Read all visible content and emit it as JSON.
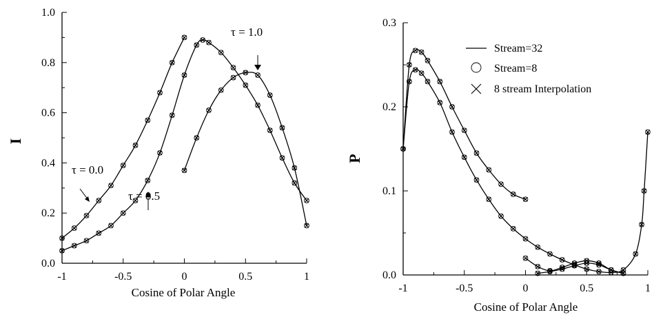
{
  "chart_data": [
    {
      "type": "line",
      "xlabel": "Cosine of Polar Angle",
      "ylabel": "I",
      "xlim": [
        -1,
        1
      ],
      "ylim": [
        0,
        1
      ],
      "xticks": [
        "-1",
        "-0.5",
        "0",
        "0.5",
        "1"
      ],
      "yticks": [
        "0.0",
        "0.2",
        "0.4",
        "0.6",
        "0.8",
        "1.0"
      ],
      "grid": false,
      "series": [
        {
          "name": "τ = 0.0",
          "x": [
            -1,
            -0.9,
            -0.8,
            -0.7,
            -0.6,
            -0.5,
            -0.4,
            -0.3,
            -0.2,
            -0.1,
            0
          ],
          "y": [
            0.1,
            0.14,
            0.19,
            0.25,
            0.31,
            0.39,
            0.47,
            0.57,
            0.68,
            0.8,
            0.9
          ]
        },
        {
          "name": "τ = 0.5",
          "x": [
            -1,
            -0.9,
            -0.8,
            -0.7,
            -0.6,
            -0.5,
            -0.4,
            -0.3,
            -0.2,
            -0.1,
            0,
            0.1,
            0.15,
            0.2,
            0.3,
            0.4,
            0.5,
            0.6,
            0.7,
            0.8,
            0.9,
            1
          ],
          "y": [
            0.05,
            0.07,
            0.09,
            0.12,
            0.15,
            0.2,
            0.25,
            0.33,
            0.44,
            0.59,
            0.75,
            0.87,
            0.89,
            0.88,
            0.84,
            0.78,
            0.71,
            0.63,
            0.53,
            0.42,
            0.32,
            0.25
          ]
        },
        {
          "name": "τ = 1.0",
          "x": [
            0,
            0.1,
            0.2,
            0.3,
            0.4,
            0.5,
            0.6,
            0.7,
            0.8,
            0.9,
            1
          ],
          "y": [
            0.37,
            0.5,
            0.61,
            0.69,
            0.74,
            0.76,
            0.75,
            0.67,
            0.54,
            0.38,
            0.15
          ]
        }
      ],
      "annotations": [
        {
          "text": "τ = 0.0",
          "x": -0.87,
          "y": 0.65
        },
        {
          "text": "τ = 0.5",
          "x": -0.3,
          "y": 0.22
        },
        {
          "text": "τ = 1.0",
          "x": 0.5,
          "y": 0.88
        }
      ]
    },
    {
      "type": "line",
      "xlabel": "Cosine of Polar Angle",
      "ylabel": "P",
      "xlim": [
        -1,
        1
      ],
      "ylim": [
        0,
        0.3
      ],
      "xticks": [
        "-1",
        "-0.5",
        "0",
        "0.5",
        "1"
      ],
      "yticks": [
        "0.0",
        "0.1",
        "0.2",
        "0.3"
      ],
      "grid": false,
      "legend_position": "top-right",
      "legend": [
        {
          "label": "Stream=32",
          "marker": "line"
        },
        {
          "label": "Stream=8",
          "marker": "circle"
        },
        {
          "label": "8 stream Interpolation",
          "marker": "x"
        }
      ],
      "series": [
        {
          "name": "upper",
          "x": [
            -1,
            -0.95,
            -0.9,
            -0.85,
            -0.8,
            -0.7,
            -0.6,
            -0.5,
            -0.4,
            -0.3,
            -0.2,
            -0.1,
            0
          ],
          "y": [
            0.15,
            0.25,
            0.267,
            0.265,
            0.255,
            0.23,
            0.2,
            0.172,
            0.145,
            0.125,
            0.108,
            0.096,
            0.09
          ]
        },
        {
          "name": "lower",
          "x": [
            -1,
            -0.95,
            -0.9,
            -0.85,
            -0.8,
            -0.7,
            -0.6,
            -0.5,
            -0.4,
            -0.3,
            -0.2,
            -0.1,
            0,
            0.1,
            0.2,
            0.3,
            0.4,
            0.5,
            0.6,
            0.7,
            0.8,
            0.9,
            0.95,
            0.97,
            1
          ],
          "y": [
            0.15,
            0.23,
            0.244,
            0.24,
            0.23,
            0.205,
            0.17,
            0.14,
            0.113,
            0.09,
            0.07,
            0.055,
            0.043,
            0.033,
            0.025,
            0.018,
            0.012,
            0.007,
            0.004,
            0.003,
            0.006,
            0.025,
            0.06,
            0.1,
            0.17
          ]
        },
        {
          "name": "bottom-hump-1",
          "x": [
            0,
            0.1,
            0.2,
            0.3,
            0.4,
            0.5,
            0.6,
            0.7,
            0.8
          ],
          "y": [
            0.02,
            0.01,
            0.005,
            0.009,
            0.014,
            0.017,
            0.014,
            0.006,
            0.002
          ]
        },
        {
          "name": "bottom-hump-2",
          "x": [
            0.1,
            0.2,
            0.3,
            0.4,
            0.5,
            0.6,
            0.7,
            0.8
          ],
          "y": [
            0.002,
            0.004,
            0.007,
            0.011,
            0.014,
            0.012,
            0.006,
            0.002
          ]
        }
      ]
    }
  ]
}
